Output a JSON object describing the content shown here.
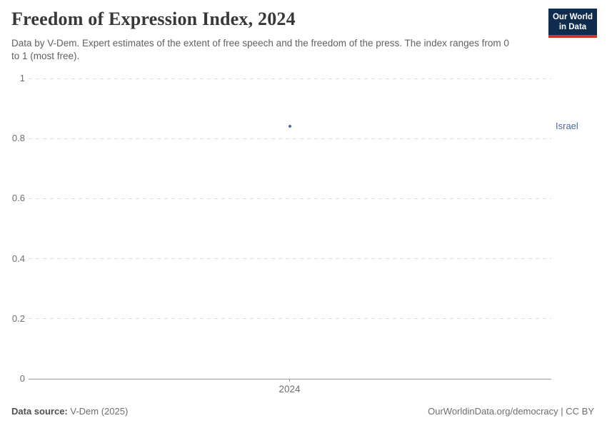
{
  "header": {
    "title": "Freedom of Expression Index, 2024",
    "subtitle": "Data by V-Dem. Expert estimates of the extent of free speech and the freedom of the press. The index ranges from 0 to 1 (most free)."
  },
  "logo": {
    "line1": "Our World",
    "line2": "in Data",
    "background": "#0f2c4e",
    "accent": "#d0342b"
  },
  "chart_data": {
    "type": "scatter",
    "title": "Freedom of Expression Index, 2024",
    "x": [
      2024
    ],
    "xtick_labels": [
      "2024"
    ],
    "ylim": [
      0,
      1
    ],
    "yticks": [
      0,
      0.2,
      0.4,
      0.6,
      0.8,
      1
    ],
    "ytick_labels": [
      "0",
      "0.2",
      "0.4",
      "0.6",
      "0.8",
      "1"
    ],
    "grid": "horizontal-dashed",
    "legend": "entity-label-right-of-plot",
    "series": [
      {
        "name": "Israel",
        "x": 2024,
        "value": 0.84,
        "color": "#4c6a9c"
      }
    ]
  },
  "footer": {
    "source_label": "Data source:",
    "source_value": "V-Dem (2025)",
    "credit": "OurWorldinData.org/democracy | CC BY"
  },
  "colors": {
    "title": "#383838",
    "subtitle": "#616161",
    "axis_label": "#6e6e6e",
    "gridline": "#dcdcdc",
    "axis_line": "#9a9a9a"
  }
}
